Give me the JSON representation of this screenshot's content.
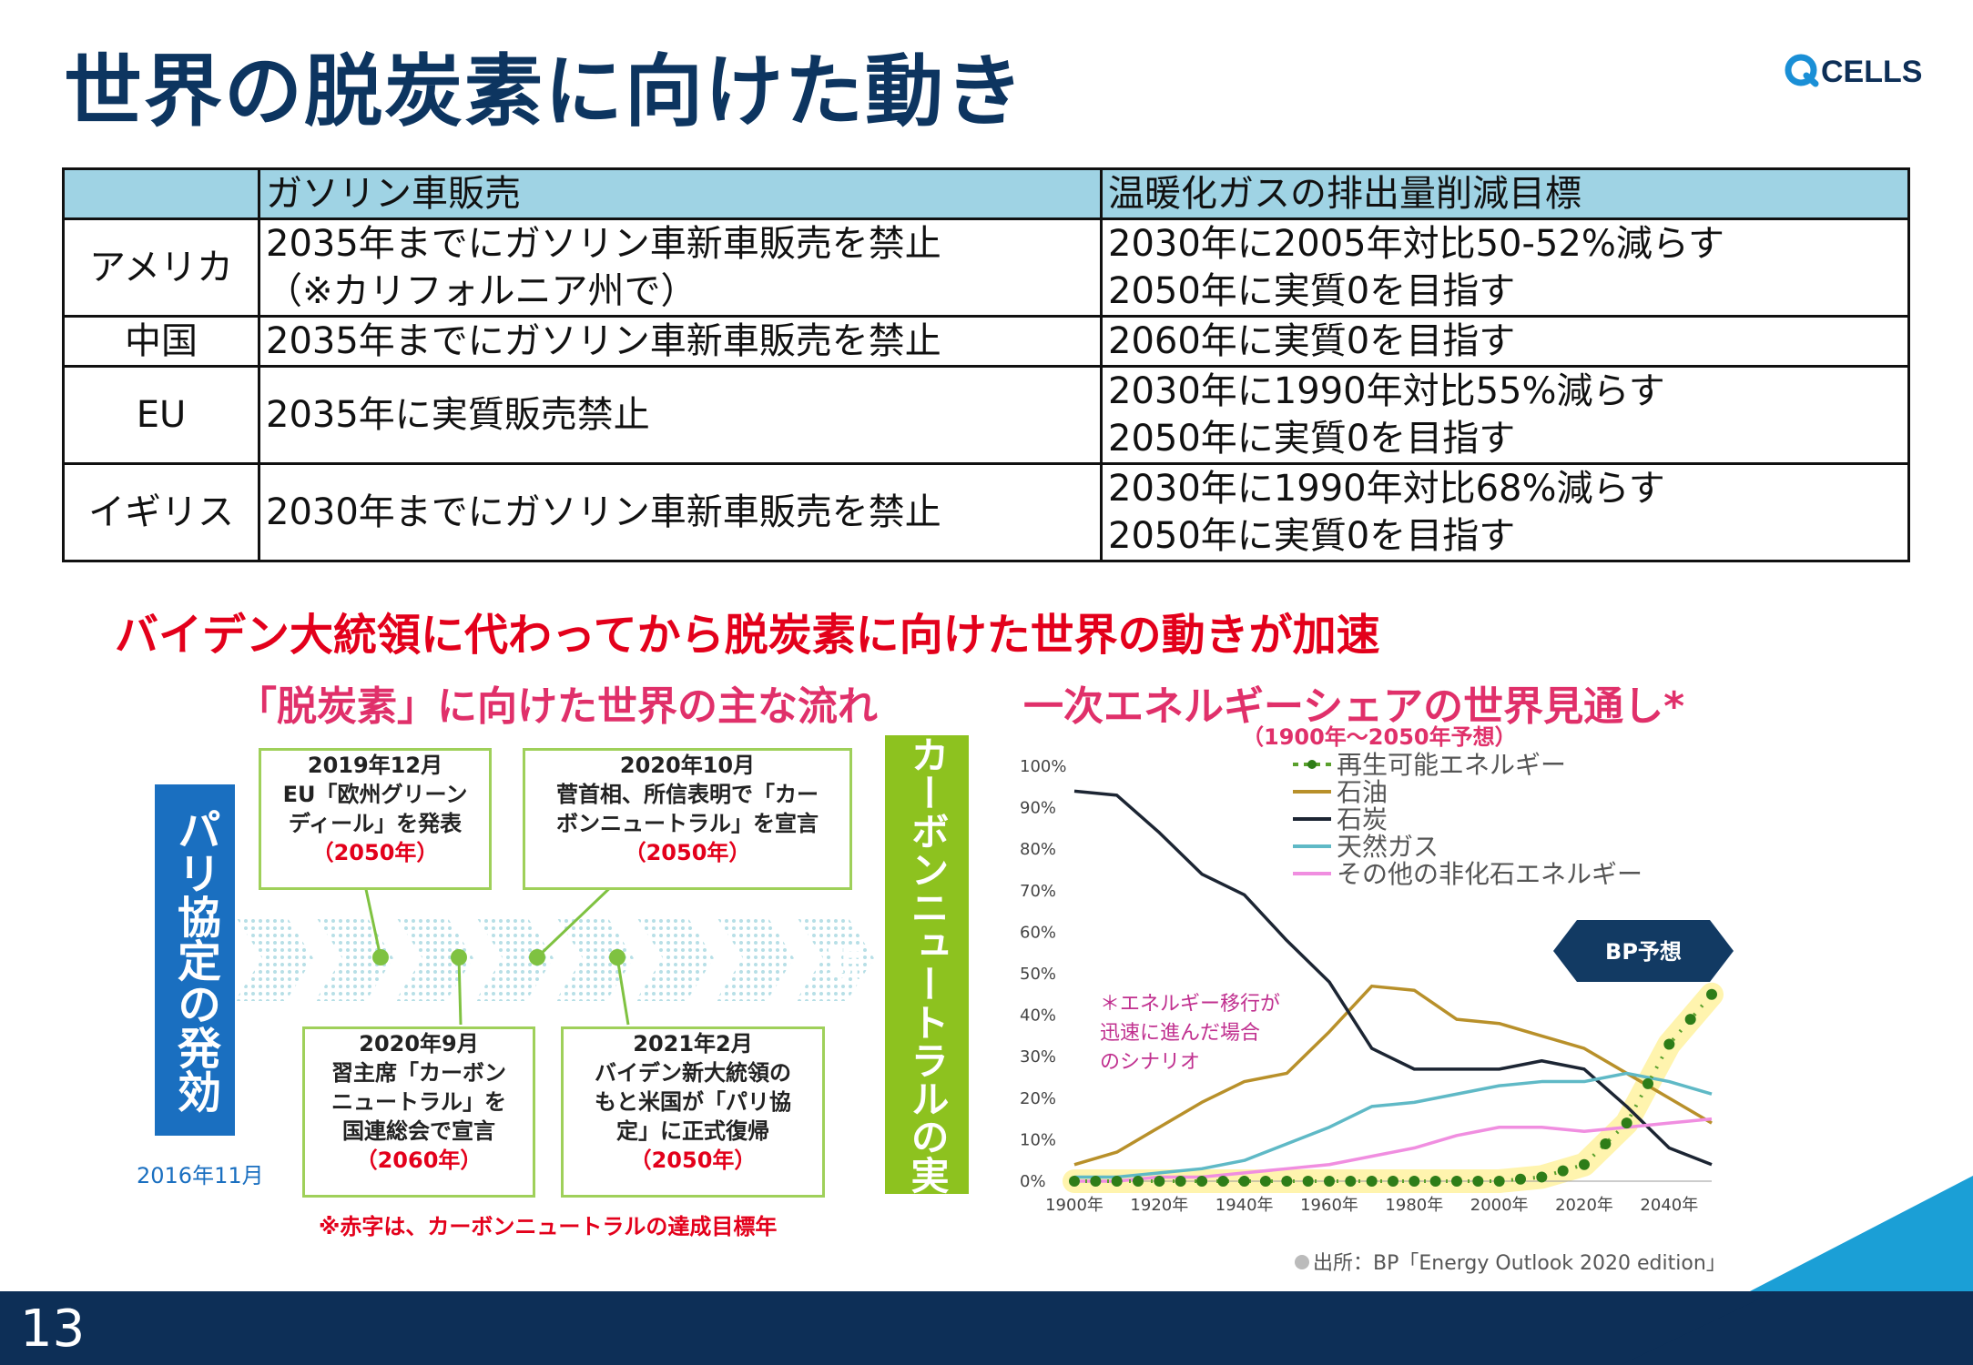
{
  "slide": {
    "title": "世界の脱炭素に向けた動き",
    "logo_text": "CELLS",
    "page_number": "13",
    "colors": {
      "navy": "#0d2f57",
      "accent_blue": "#1a6fc0",
      "red": "#e3001b",
      "pink": "#e0306a",
      "green": "#8dc21f",
      "header_cyan": "#9fd3e4"
    }
  },
  "policy_table": {
    "headers": [
      "",
      "ガソリン車販売",
      "温暖化ガスの排出量削減目標"
    ],
    "rows": [
      {
        "region": "アメリカ",
        "ban": [
          "2035年までにガソリン車新車販売を禁止",
          "（※カリフォルニア州で）"
        ],
        "target": [
          "2030年に2005年対比50-52%減らす",
          "2050年に実質0を目指す"
        ]
      },
      {
        "region": "中国",
        "ban": [
          "2035年までにガソリン車新車販売を禁止"
        ],
        "target": [
          "2060年に実質0を目指す"
        ]
      },
      {
        "region": "EU",
        "ban": [
          "2035年に実質販売禁止"
        ],
        "target": [
          "2030年に1990年対比55%減らす",
          "2050年に実質0を目指す"
        ]
      },
      {
        "region": "イギリス",
        "ban": [
          "2030年までにガソリン車新車販売を禁止"
        ],
        "target": [
          "2030年に1990年対比68%減らす",
          "2050年に実質0を目指す"
        ]
      }
    ]
  },
  "headline": "バイデン大統領に代わってから脱炭素に向けた世界の動きが加速",
  "timeline": {
    "title": "「脱炭素」に向けた世界の主な流れ",
    "start_label": "パリ協定の発効",
    "start_date": "2016年11月",
    "end_label": "カーボンニュートラルの実現",
    "events": [
      {
        "lines": [
          "2019年12月",
          "EU「欧州グリーン",
          "ディール」を発表"
        ],
        "year": "（2050年）"
      },
      {
        "lines": [
          "2020年10月",
          "菅首相、所信表明で「カー",
          "ボンニュートラル」を宣言"
        ],
        "year": "（2050年）"
      },
      {
        "lines": [
          "2020年9月",
          "習主席「カーボン",
          "ニュートラル」を",
          "国連総会で宣言"
        ],
        "year": "（2060年）"
      },
      {
        "lines": [
          "2021年2月",
          "バイデン新大統領の",
          "もと米国が「パリ協",
          "定」に正式復帰"
        ],
        "year": "（2050年）"
      }
    ],
    "note": "※赤字は、カーボンニュートラルの達成目標年"
  },
  "chart_data": {
    "type": "line",
    "title": "一次エネルギーシェアの世界見通し*",
    "subtitle": "（1900年～2050年予想）",
    "x": [
      1900,
      1910,
      1920,
      1930,
      1940,
      1950,
      1960,
      1970,
      1980,
      1990,
      2000,
      2010,
      2020,
      2030,
      2040,
      2050
    ],
    "x_ticks": [
      "1900年",
      "1920年",
      "1940年",
      "1960年",
      "1980年",
      "2000年",
      "2020年",
      "2040年"
    ],
    "y_ticks": [
      "0%",
      "10%",
      "20%",
      "30%",
      "40%",
      "50%",
      "60%",
      "70%",
      "80%",
      "90%",
      "100%"
    ],
    "ylim": [
      0,
      100
    ],
    "xlim": [
      1900,
      2050
    ],
    "series": [
      {
        "name": "再生可能エネルギー",
        "color": "#5aa02c",
        "dotted": true,
        "values": [
          0,
          0,
          0,
          0,
          0,
          0,
          0,
          0,
          0,
          0,
          0,
          1,
          4,
          14,
          33,
          45
        ]
      },
      {
        "name": "石油",
        "color": "#b8902a",
        "values": [
          4,
          7,
          13,
          19,
          24,
          26,
          36,
          47,
          46,
          39,
          38,
          35,
          32,
          26,
          20,
          14
        ]
      },
      {
        "name": "石炭",
        "color": "#1c2533",
        "values": [
          94,
          93,
          84,
          74,
          69,
          58,
          48,
          32,
          27,
          27,
          27,
          29,
          27,
          18,
          8,
          4
        ]
      },
      {
        "name": "天然ガス",
        "color": "#5fb9c6",
        "values": [
          1,
          1,
          2,
          3,
          5,
          9,
          13,
          18,
          19,
          21,
          23,
          24,
          24,
          26,
          24,
          21
        ]
      },
      {
        "name": "その他の非化石エネルギー",
        "color": "#f08ee0",
        "values": [
          0,
          0,
          1,
          1,
          2,
          3,
          4,
          6,
          8,
          11,
          13,
          13,
          12,
          13,
          14,
          15
        ]
      }
    ],
    "annotations": {
      "forecast_label": "BP予想",
      "scenario_note": [
        "＊エネルギー移行が",
        "迅速に進んだ場合",
        "のシナリオ"
      ],
      "source": "出所：BP「Energy Outlook 2020 edition」"
    }
  }
}
